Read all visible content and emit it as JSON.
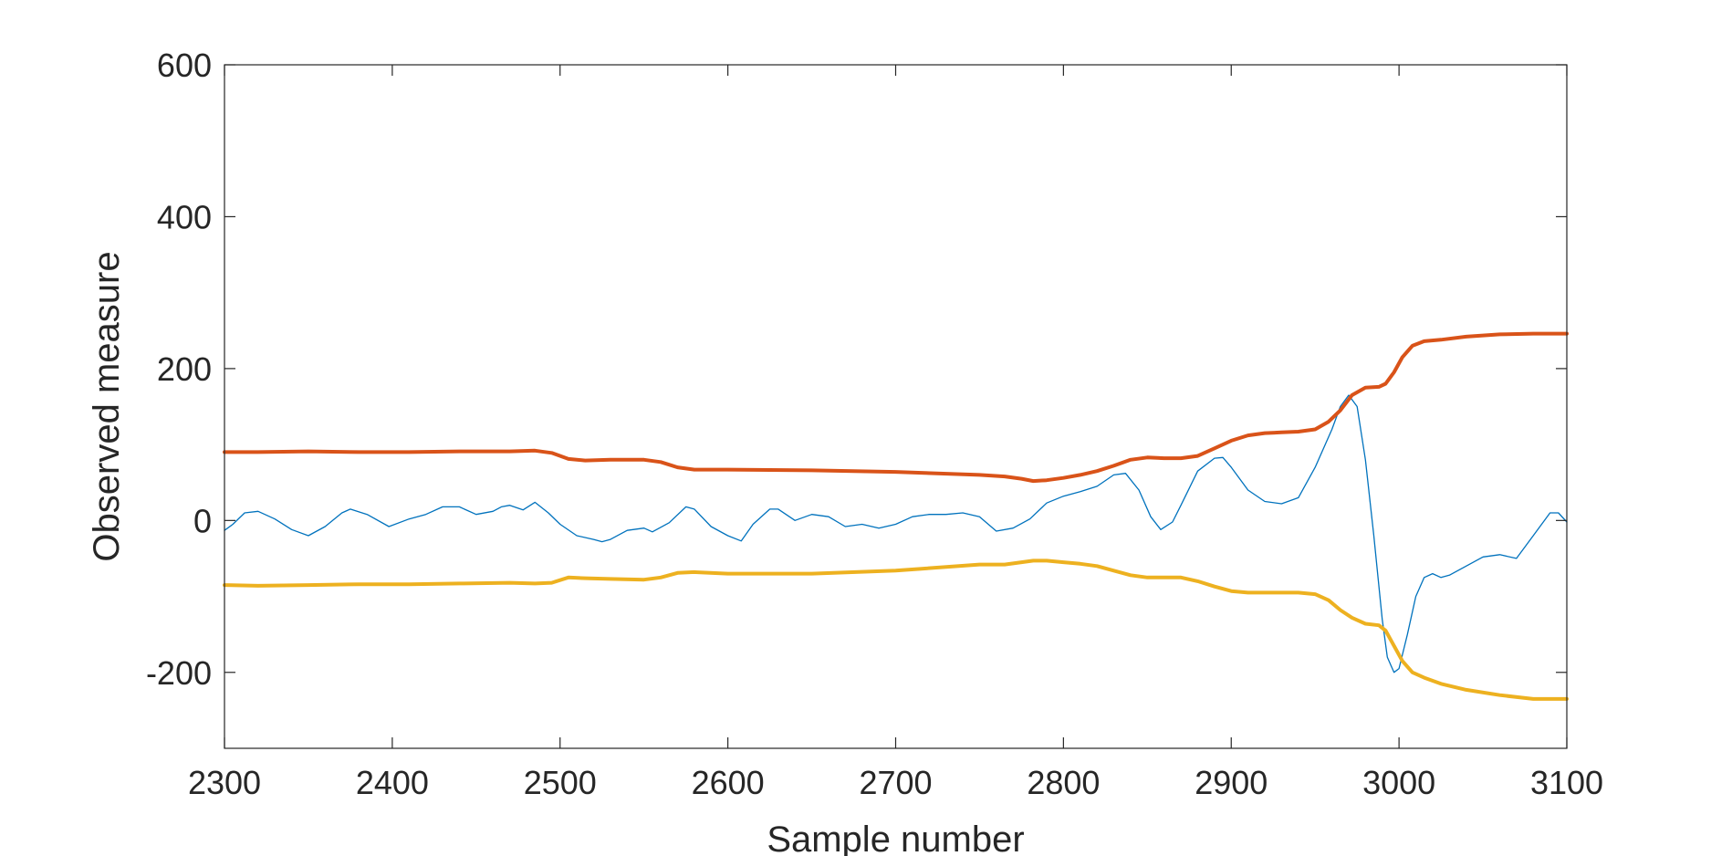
{
  "chart_data": {
    "type": "line",
    "xlabel": "Sample number",
    "ylabel": "Observed measure",
    "xlim": [
      2300,
      3100
    ],
    "ylim": [
      -300,
      600
    ],
    "xticks": [
      2300,
      2400,
      2500,
      2600,
      2700,
      2800,
      2900,
      3000,
      3100
    ],
    "yticks": [
      -200,
      0,
      200,
      400,
      600
    ],
    "grid": false,
    "box": true,
    "series": [
      {
        "color": "#0072BD",
        "line_width": "thin",
        "x": [
          2300,
          2305,
          2312,
          2320,
          2330,
          2340,
          2350,
          2360,
          2370,
          2375,
          2385,
          2398,
          2410,
          2420,
          2430,
          2440,
          2450,
          2460,
          2465,
          2470,
          2478,
          2485,
          2493,
          2500,
          2510,
          2520,
          2525,
          2530,
          2540,
          2550,
          2555,
          2565,
          2575,
          2580,
          2590,
          2600,
          2608,
          2615,
          2625,
          2630,
          2640,
          2650,
          2660,
          2670,
          2680,
          2690,
          2700,
          2710,
          2720,
          2730,
          2740,
          2750,
          2760,
          2770,
          2780,
          2790,
          2800,
          2810,
          2820,
          2830,
          2837,
          2845,
          2852,
          2858,
          2865,
          2870,
          2880,
          2890,
          2895,
          2900,
          2910,
          2920,
          2930,
          2940,
          2950,
          2960,
          2965,
          2970,
          2975,
          2980,
          2985,
          2990,
          2993,
          2997,
          3000,
          3005,
          3010,
          3015,
          3020,
          3025,
          3030,
          3040,
          3050,
          3060,
          3070,
          3080,
          3090,
          3095,
          3100
        ],
        "y": [
          -13,
          -5,
          10,
          12,
          2,
          -12,
          -20,
          -8,
          10,
          15,
          8,
          -8,
          2,
          8,
          18,
          18,
          8,
          12,
          18,
          20,
          14,
          24,
          10,
          -5,
          -20,
          -25,
          -28,
          -25,
          -13,
          -10,
          -15,
          -3,
          18,
          15,
          -8,
          -20,
          -27,
          -5,
          15,
          15,
          0,
          8,
          5,
          -8,
          -5,
          -10,
          -5,
          5,
          8,
          8,
          10,
          5,
          -14,
          -10,
          2,
          23,
          32,
          38,
          45,
          60,
          62,
          40,
          5,
          -12,
          -2,
          20,
          65,
          82,
          83,
          70,
          40,
          25,
          22,
          30,
          70,
          120,
          150,
          165,
          150,
          80,
          -20,
          -130,
          -180,
          -200,
          -195,
          -150,
          -100,
          -75,
          -70,
          -75,
          -72,
          -60,
          -48,
          -45,
          -50,
          -20,
          10,
          10,
          -2
        ]
      },
      {
        "color": "#D95319",
        "line_width": "thick",
        "x": [
          2300,
          2320,
          2350,
          2380,
          2410,
          2440,
          2470,
          2485,
          2495,
          2505,
          2515,
          2530,
          2550,
          2560,
          2570,
          2580,
          2600,
          2650,
          2700,
          2750,
          2765,
          2775,
          2782,
          2790,
          2800,
          2810,
          2820,
          2830,
          2840,
          2850,
          2860,
          2870,
          2880,
          2890,
          2900,
          2910,
          2920,
          2930,
          2940,
          2950,
          2958,
          2965,
          2972,
          2980,
          2988,
          2992,
          2997,
          3002,
          3008,
          3015,
          3025,
          3040,
          3060,
          3080,
          3100
        ],
        "y": [
          90,
          90,
          91,
          90,
          90,
          91,
          91,
          92,
          89,
          81,
          79,
          80,
          80,
          77,
          70,
          67,
          67,
          66,
          64,
          60,
          58,
          55,
          52,
          53,
          56,
          60,
          65,
          72,
          80,
          83,
          82,
          82,
          85,
          95,
          105,
          112,
          115,
          116,
          117,
          120,
          130,
          145,
          165,
          175,
          176,
          180,
          195,
          215,
          230,
          236,
          238,
          242,
          245,
          246,
          246
        ]
      },
      {
        "color": "#EDB120",
        "line_width": "thick",
        "x": [
          2300,
          2320,
          2350,
          2380,
          2410,
          2440,
          2470,
          2485,
          2495,
          2505,
          2515,
          2530,
          2550,
          2560,
          2570,
          2580,
          2600,
          2650,
          2700,
          2750,
          2765,
          2775,
          2782,
          2790,
          2800,
          2810,
          2820,
          2830,
          2840,
          2850,
          2860,
          2870,
          2880,
          2890,
          2900,
          2910,
          2920,
          2930,
          2940,
          2950,
          2958,
          2965,
          2972,
          2980,
          2988,
          2992,
          2997,
          3002,
          3008,
          3015,
          3025,
          3040,
          3060,
          3080,
          3100
        ],
        "y": [
          -85,
          -86,
          -85,
          -84,
          -84,
          -83,
          -82,
          -83,
          -82,
          -75,
          -76,
          -77,
          -78,
          -75,
          -69,
          -68,
          -70,
          -70,
          -66,
          -58,
          -58,
          -55,
          -53,
          -53,
          -55,
          -57,
          -60,
          -66,
          -72,
          -75,
          -75,
          -75,
          -80,
          -87,
          -93,
          -95,
          -95,
          -95,
          -95,
          -97,
          -105,
          -118,
          -128,
          -136,
          -138,
          -145,
          -165,
          -185,
          -200,
          -207,
          -215,
          -223,
          -230,
          -235,
          -235
        ]
      }
    ]
  }
}
